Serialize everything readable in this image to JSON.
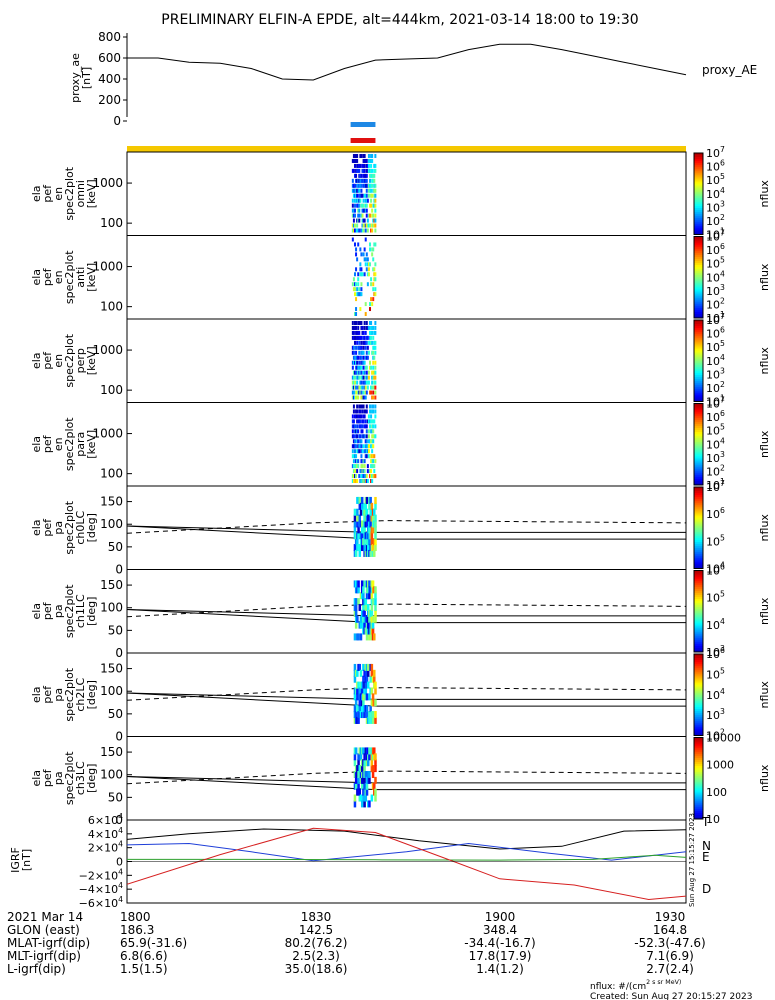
{
  "title": "PRELIMINARY ELFIN-A EPDE, alt=444km, 2021-03-14 18:00 to 19:30",
  "proxy_panel": {
    "ylabel": [
      "proxy_ae",
      "[nT]"
    ],
    "yticks": [
      "800",
      "600",
      "400",
      "200",
      "0"
    ],
    "legend": "proxy_AE",
    "ylim": [
      0,
      800
    ]
  },
  "spec_panels": [
    {
      "ylabel": [
        "ela",
        "pef",
        "en",
        "spec2plot",
        "omni",
        "[keV]"
      ],
      "yticks": [
        "1000",
        "100"
      ],
      "cbar": [
        "10^7",
        "10^6",
        "10^5",
        "10^4",
        "10^3",
        "10^2",
        "10^1"
      ],
      "cbar_label": "nflux"
    },
    {
      "ylabel": [
        "ela",
        "pef",
        "en",
        "spec2plot",
        "anti",
        "[keV]"
      ],
      "yticks": [
        "1000",
        "100"
      ],
      "cbar": [
        "10^7",
        "10^6",
        "10^5",
        "10^4",
        "10^3",
        "10^2",
        "10^1"
      ],
      "cbar_label": "nflux"
    },
    {
      "ylabel": [
        "ela",
        "pef",
        "en",
        "spec2plot",
        "perp",
        "[keV]"
      ],
      "yticks": [
        "1000",
        "100"
      ],
      "cbar": [
        "10^7",
        "10^6",
        "10^5",
        "10^4",
        "10^3",
        "10^2",
        "10^1"
      ],
      "cbar_label": "nflux"
    },
    {
      "ylabel": [
        "ela",
        "pef",
        "en",
        "spec2plot",
        "para",
        "[keV]"
      ],
      "yticks": [
        "1000",
        "100"
      ],
      "cbar": [
        "10^7",
        "10^6",
        "10^5",
        "10^4",
        "10^3",
        "10^2",
        "10^1"
      ],
      "cbar_label": "nflux"
    }
  ],
  "pa_panels": [
    {
      "ylabel": [
        "ela",
        "pef",
        "pa",
        "spec2plot",
        "ch0LC",
        "[deg]"
      ],
      "yticks": [
        "150",
        "100",
        "50",
        "0"
      ],
      "cbar": [
        "10^7",
        "10^6",
        "10^5",
        "10^4"
      ],
      "cbar_label": "nflux"
    },
    {
      "ylabel": [
        "ela",
        "pef",
        "pa",
        "spec2plot",
        "ch1LC",
        "[deg]"
      ],
      "yticks": [
        "150",
        "100",
        "50",
        "0"
      ],
      "cbar": [
        "10^6",
        "10^5",
        "10^4",
        "10^3"
      ],
      "cbar_label": "nflux"
    },
    {
      "ylabel": [
        "ela",
        "pef",
        "pa",
        "spec2plot",
        "ch2LC",
        "[deg]"
      ],
      "yticks": [
        "150",
        "100",
        "50",
        "0"
      ],
      "cbar": [
        "10^6",
        "10^5",
        "10^4",
        "10^3",
        "10^2"
      ],
      "cbar_label": "nflux"
    },
    {
      "ylabel": [
        "ela",
        "pef",
        "pa",
        "spec2plot",
        "ch3LC",
        "[deg]"
      ],
      "yticks": [
        "150",
        "100",
        "50",
        "0"
      ],
      "cbar": [
        "10000",
        "1000",
        "100",
        "10"
      ],
      "cbar_label": "nflux"
    }
  ],
  "igrf_panel": {
    "ylabel": [
      "IGRF",
      "[nT]"
    ],
    "yticks": [
      "6×10^4",
      "4×10^4",
      "2×10^4",
      "0",
      "−2×10^4",
      "−4×10^4",
      "−6×10^4"
    ],
    "ylim": [
      -60000,
      60000
    ],
    "legend": [
      {
        "name": "T",
        "color": "#000000"
      },
      {
        "name": "N",
        "color": "#1f3fd8"
      },
      {
        "name": "E",
        "color": "#2ca02c"
      },
      {
        "name": "D",
        "color": "#d62020"
      }
    ]
  },
  "footer": {
    "rows": [
      {
        "label": "2021 Mar 14",
        "values": [
          "1800",
          "1830",
          "1900",
          "1930"
        ]
      },
      {
        "label": "GLON (east)",
        "values": [
          "186.3",
          "142.5",
          "348.4",
          "164.8"
        ]
      },
      {
        "label": "MLAT-igrf(dip)",
        "values": [
          "65.9(-31.6)",
          "80.2(76.2)",
          "-34.4(-16.7)",
          "-52.3(-47.6)"
        ]
      },
      {
        "label": "MLT-igrf(dip)",
        "values": [
          "6.8(6.6)",
          "2.5(2.3)",
          "17.8(17.9)",
          "7.1(6.9)"
        ]
      },
      {
        "label": "L-igrf(dip)",
        "values": [
          "1.5(1.5)",
          "35.0(18.6)",
          "1.4(1.2)",
          "2.7(2.4)"
        ]
      }
    ],
    "units": "nflux: #/(cm^2 s sr MeV)",
    "created": "Created: Sun Aug 27 20:15:27 2023",
    "side_stamp": "Sun Aug 27 15:15:27 2023"
  },
  "colors": {
    "science_bar": "#f5c800",
    "blue_bar": "#1e88e5",
    "red_bar": "#e01010"
  },
  "chart_data": {
    "type": "line",
    "x_unit": "UT (HHMM)",
    "xlim": [
      "18:00",
      "19:30"
    ],
    "proxy_ae": {
      "name": "proxy_AE",
      "x": [
        0,
        5,
        10,
        15,
        20,
        25,
        30,
        35,
        40,
        45,
        50,
        55,
        60,
        65,
        70,
        75,
        80,
        85,
        90
      ],
      "y": [
        600,
        600,
        560,
        550,
        500,
        400,
        390,
        500,
        580,
        590,
        600,
        680,
        730,
        730,
        680,
        620,
        560,
        500,
        440
      ]
    },
    "science_window": {
      "start_min": 36,
      "end_min": 40
    }
  }
}
